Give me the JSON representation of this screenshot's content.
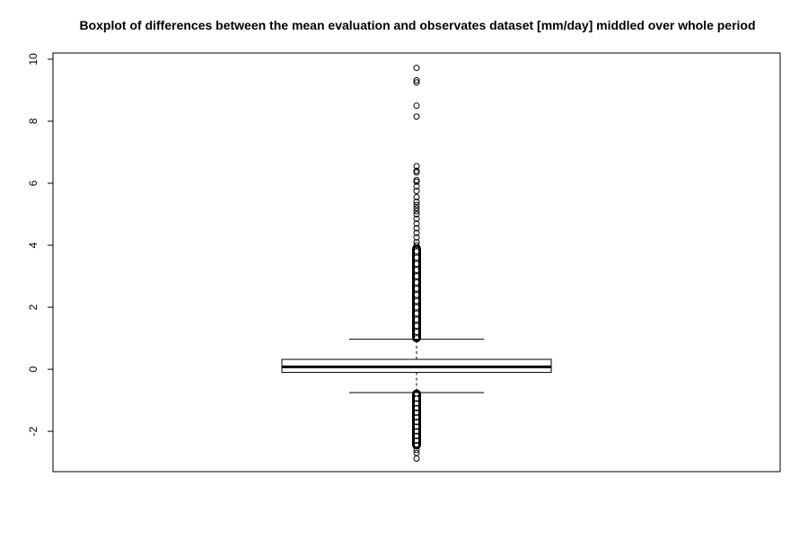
{
  "chart_data": {
    "type": "boxplot",
    "title": "Boxplot of differences between the mean evaluation and observates dataset [mm/day] middled over whole period",
    "xlabel": "",
    "ylabel": "",
    "ylim": [
      -3.3,
      10.2
    ],
    "y_ticks": [
      "-2",
      "0",
      "2",
      "4",
      "6",
      "8",
      "10"
    ],
    "grid": false,
    "box": {
      "q1": -0.1,
      "median": 0.08,
      "q3": 0.32,
      "whisker_low": -0.75,
      "whisker_high": 0.97
    },
    "outliers_high": [
      1.0,
      1.2,
      1.4,
      1.6,
      1.8,
      2.0,
      2.2,
      2.4,
      2.6,
      2.8,
      3.0,
      3.2,
      3.4,
      3.6,
      3.8,
      4.0,
      4.1,
      4.25,
      4.4,
      4.55,
      4.7,
      4.85,
      5.0,
      5.1,
      5.2,
      5.3,
      5.4,
      5.55,
      5.75,
      5.9,
      6.05,
      6.1,
      6.35,
      6.4,
      6.55,
      8.15,
      8.5,
      9.25,
      9.32,
      9.72
    ],
    "outliers_low": [
      -0.78,
      -0.95,
      -1.1,
      -1.25,
      -1.4,
      -1.55,
      -1.7,
      -1.85,
      -2.0,
      -2.15,
      -2.3,
      -2.45,
      -2.6,
      -2.7,
      -2.88
    ]
  }
}
